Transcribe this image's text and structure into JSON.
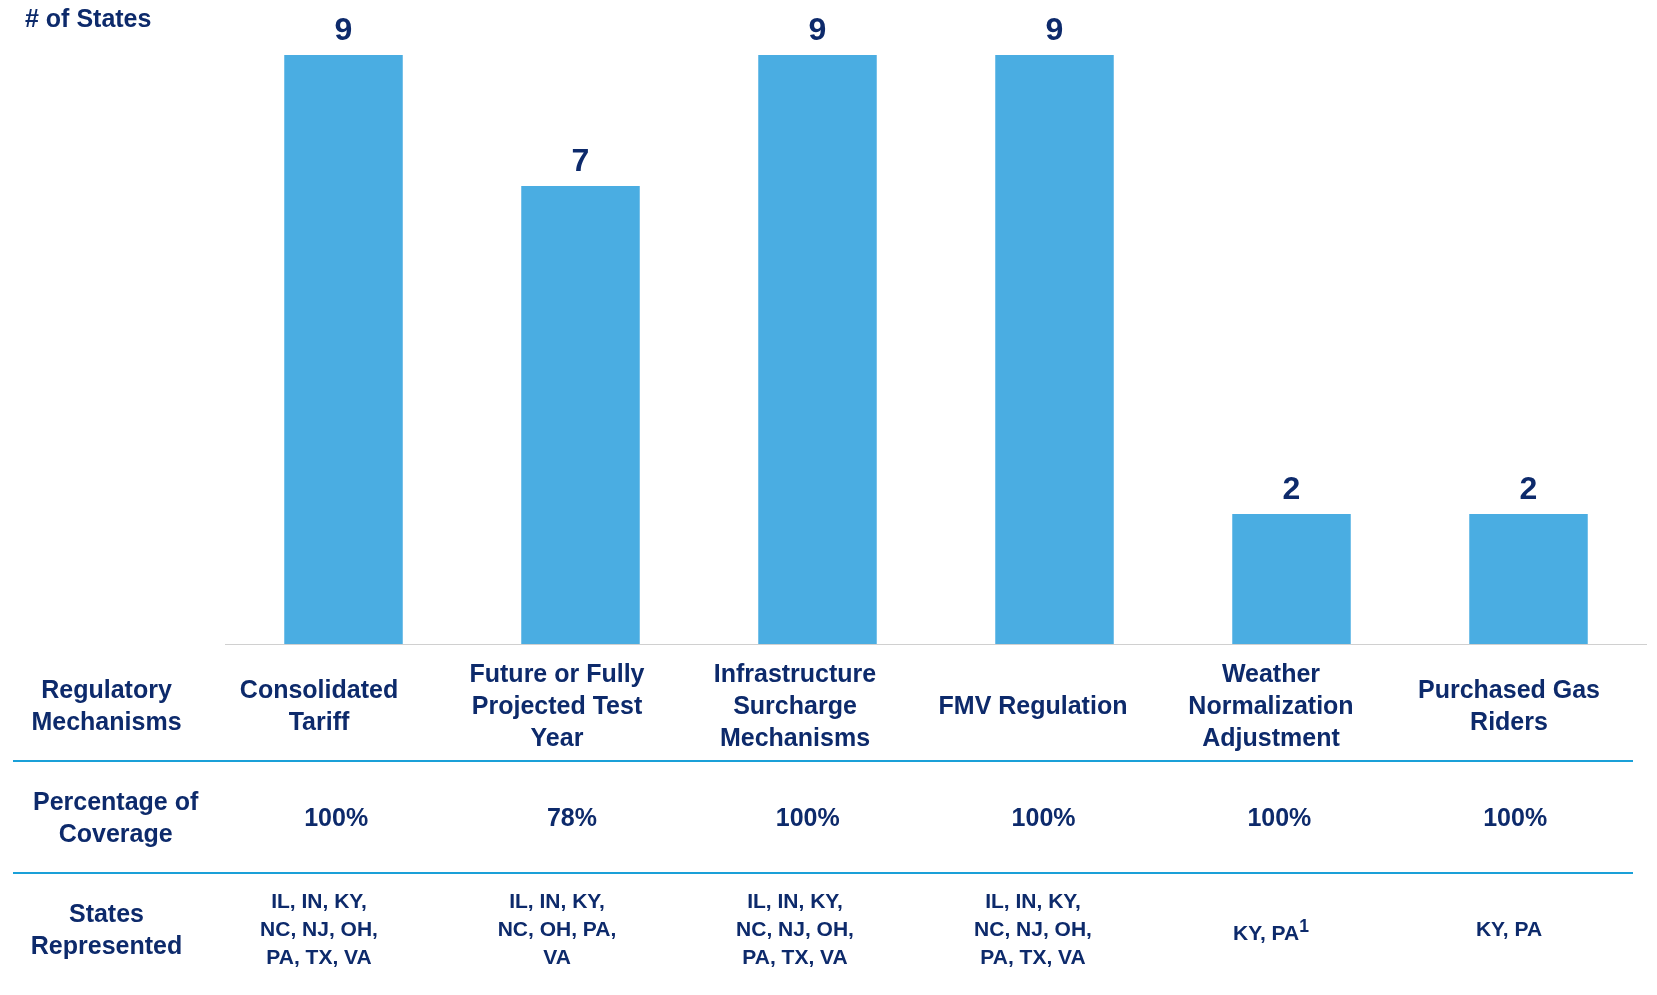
{
  "chart_data": {
    "type": "bar",
    "ylabel": "# of States",
    "categories": [
      "Consolidated Tariff",
      "Future or Fully Projected Test Year",
      "Infrastructure Surcharge Mechanisms",
      "FMV Regulation",
      "Weather Normalization Adjustment",
      "Purchased Gas Riders"
    ],
    "values": [
      9,
      7,
      9,
      9,
      2,
      2
    ],
    "color": "#4aade2",
    "ylim": [
      0,
      9
    ],
    "data_labels": true,
    "grid": false,
    "legend": false,
    "annotations": [
      "Regulatory Mechanisms",
      "Percentage of Coverage",
      "States Represented",
      "100%",
      "78%",
      "100%",
      "100%",
      "100%",
      "100%",
      "IL, IN, KY, NC, NJ, OH, PA, TX, VA",
      "IL, IN, KY, NC, OH, PA, VA",
      "IL, IN, KY, NC, NJ, OH, PA, TX, VA",
      "IL, IN, KY, NC, NJ, OH, PA, TX, VA",
      "KY, PA$^{1}$",
      "KY, PA"
    ]
  }
}
